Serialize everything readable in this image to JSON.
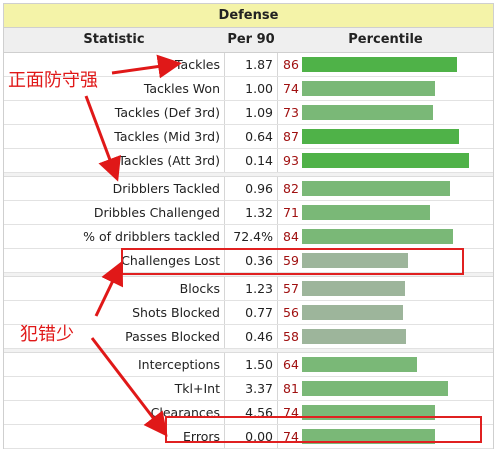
{
  "table": {
    "caption": "Defense",
    "headers": {
      "statistic": "Statistic",
      "per90": "Per 90",
      "percentile": "Percentile"
    }
  },
  "colors": {
    "bar_high": "#4fb248",
    "bar_mid": "#7ab877",
    "bar_low": "#9db59b",
    "percentile_text": "#a01010",
    "annotation": "#e01818"
  },
  "groups": [
    {
      "rows": [
        {
          "stat": "Tackles",
          "per90": "1.87",
          "pct": 86
        },
        {
          "stat": "Tackles Won",
          "per90": "1.00",
          "pct": 74
        },
        {
          "stat": "Tackles (Def 3rd)",
          "per90": "1.09",
          "pct": 73
        },
        {
          "stat": "Tackles (Mid 3rd)",
          "per90": "0.64",
          "pct": 87
        },
        {
          "stat": "Tackles (Att 3rd)",
          "per90": "0.14",
          "pct": 93
        }
      ]
    },
    {
      "rows": [
        {
          "stat": "Dribblers Tackled",
          "per90": "0.96",
          "pct": 82
        },
        {
          "stat": "Dribbles Challenged",
          "per90": "1.32",
          "pct": 71
        },
        {
          "stat": "% of dribblers tackled",
          "per90": "72.4%",
          "pct": 84
        },
        {
          "stat": "Challenges Lost",
          "per90": "0.36",
          "pct": 59
        }
      ]
    },
    {
      "rows": [
        {
          "stat": "Blocks",
          "per90": "1.23",
          "pct": 57
        },
        {
          "stat": "Shots Blocked",
          "per90": "0.77",
          "pct": 56
        },
        {
          "stat": "Passes Blocked",
          "per90": "0.46",
          "pct": 58
        }
      ]
    },
    {
      "rows": [
        {
          "stat": "Interceptions",
          "per90": "1.50",
          "pct": 64
        },
        {
          "stat": "Tkl+Int",
          "per90": "3.37",
          "pct": 81
        },
        {
          "stat": "Clearances",
          "per90": "4.56",
          "pct": 74
        },
        {
          "stat": "Errors",
          "per90": "0.00",
          "pct": 74
        }
      ]
    }
  ],
  "annotations": {
    "strong_tackling": "正面防守强",
    "few_errors": "犯错少"
  }
}
